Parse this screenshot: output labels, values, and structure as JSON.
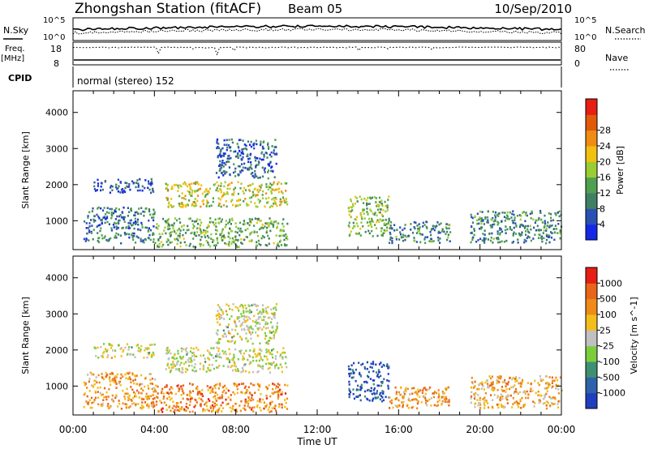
{
  "header": {
    "station": "Zhongshan Station (fitACF)",
    "beam": "Beam 05",
    "date": "10/Sep/2010"
  },
  "summary_panels": {
    "nsky_label": "N.Sky",
    "nsky_ticks": [
      "10^5",
      "10^0"
    ],
    "nsearch_label": "N.Search",
    "nsearch_ticks": [
      "10^5",
      "10^0"
    ],
    "freq_label": "Freq.",
    "freq_unit": "[MHz]",
    "freq_ticks": [
      "18",
      "8"
    ],
    "nave_label": "Nave",
    "nave_ticks": [
      "80",
      "0"
    ],
    "cpid_label": "CPID",
    "cpid_text": "normal (stereo) 152"
  },
  "colors": {
    "power_scale": [
      "#1428e6",
      "#2a50b4",
      "#3f7f64",
      "#4fa050",
      "#9acd32",
      "#f2c010",
      "#f08c14",
      "#e05a0a",
      "#e61e14"
    ],
    "velocity_scale": [
      "#1f3fbe",
      "#2f62a8",
      "#3f8f72",
      "#7ccd3c",
      "#c0c0c0",
      "#f3bd1b",
      "#f08a18",
      "#e8661a",
      "#e61e14"
    ]
  },
  "chart_data": [
    {
      "type": "heatmap",
      "name": "power",
      "xlabel": "",
      "ylabel": "Slant Range [km]",
      "x_range": [
        "00:00",
        "24:00"
      ],
      "ylim": [
        200,
        4600
      ],
      "yticks": [
        "1000",
        "2000",
        "3000",
        "4000"
      ],
      "colorbar": {
        "label": "Power [dB]",
        "ticks": [
          "4",
          "8",
          "12",
          "16",
          "20",
          "24",
          "28"
        ]
      },
      "regions": [
        {
          "t_start": "00:30",
          "t_end": "04:00",
          "r_start": 400,
          "r_end": 1400,
          "level": 0.25
        },
        {
          "t_start": "04:00",
          "t_end": "10:30",
          "r_start": 300,
          "r_end": 1100,
          "level": 0.4
        },
        {
          "t_start": "01:00",
          "t_end": "04:00",
          "r_start": 1800,
          "r_end": 2200,
          "level": 0.15
        },
        {
          "t_start": "04:30",
          "t_end": "10:30",
          "r_start": 1400,
          "r_end": 2100,
          "level": 0.55
        },
        {
          "t_start": "07:00",
          "t_end": "10:00",
          "r_start": 2200,
          "r_end": 3300,
          "level": 0.2
        },
        {
          "t_start": "13:30",
          "t_end": "15:30",
          "r_start": 600,
          "r_end": 1700,
          "level": 0.45
        },
        {
          "t_start": "15:30",
          "t_end": "18:30",
          "r_start": 400,
          "r_end": 1000,
          "level": 0.3
        },
        {
          "t_start": "19:30",
          "t_end": "24:00",
          "r_start": 400,
          "r_end": 1300,
          "level": 0.3
        }
      ]
    },
    {
      "type": "heatmap",
      "name": "velocity",
      "xlabel": "Time UT",
      "ylabel": "Slant Range [km]",
      "x_range": [
        "00:00",
        "24:00"
      ],
      "xticks": [
        "00:00",
        "04:00",
        "08:00",
        "12:00",
        "16:00",
        "20:00",
        "00:00"
      ],
      "ylim": [
        200,
        4600
      ],
      "yticks": [
        "1000",
        "2000",
        "3000",
        "4000"
      ],
      "colorbar": {
        "label": "Velocity [m s^-1]",
        "ticks": [
          "1000",
          "500",
          "100",
          "25",
          "-25",
          "-100",
          "-500",
          "-1000"
        ]
      },
      "regions": [
        {
          "t_start": "00:30",
          "t_end": "04:00",
          "r_start": 400,
          "r_end": 1400,
          "level": 0.7
        },
        {
          "t_start": "04:00",
          "t_end": "10:30",
          "r_start": 300,
          "r_end": 1100,
          "level": 0.75
        },
        {
          "t_start": "01:00",
          "t_end": "04:00",
          "r_start": 1800,
          "r_end": 2200,
          "level": 0.5
        },
        {
          "t_start": "04:30",
          "t_end": "10:30",
          "r_start": 1400,
          "r_end": 2100,
          "level": 0.5
        },
        {
          "t_start": "07:00",
          "t_end": "10:00",
          "r_start": 2200,
          "r_end": 3300,
          "level": 0.5
        },
        {
          "t_start": "13:30",
          "t_end": "15:30",
          "r_start": 600,
          "r_end": 1700,
          "level": 0.1
        },
        {
          "t_start": "15:30",
          "t_end": "18:30",
          "r_start": 400,
          "r_end": 1000,
          "level": 0.7
        },
        {
          "t_start": "19:30",
          "t_end": "24:00",
          "r_start": 400,
          "r_end": 1300,
          "level": 0.65
        }
      ]
    }
  ]
}
